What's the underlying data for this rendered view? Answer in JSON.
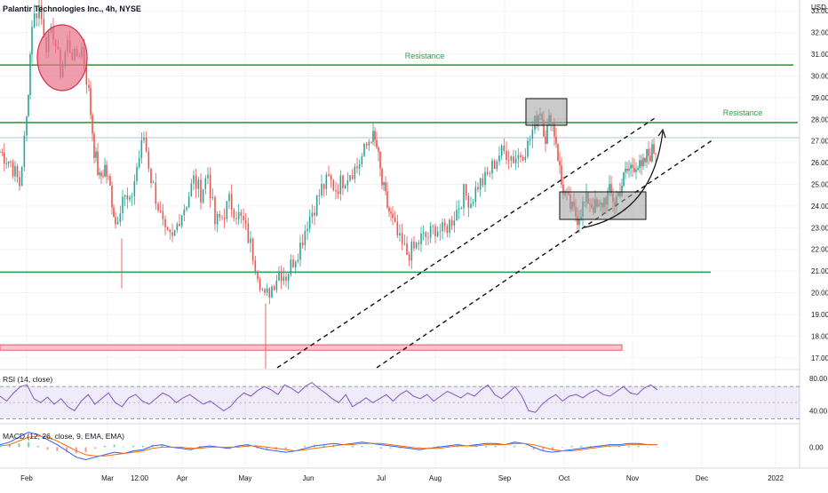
{
  "header": {
    "symbol_line": "Palantir Technologies Inc., 4h, NYSE",
    "currency": "USD"
  },
  "chart_data": {
    "type": "line",
    "title": "Palantir Technologies Inc., 4h, NYSE",
    "main": {
      "ylim": [
        16.5,
        33.5
      ],
      "yticks": [
        17,
        18,
        19,
        20,
        21,
        22,
        23,
        24,
        25,
        26,
        27,
        28,
        29,
        30,
        31,
        32,
        33
      ],
      "ytick_labels": [
        "17.00",
        "18.00",
        "19.00",
        "20.00",
        "21.00",
        "22.00",
        "23.00",
        "24.00",
        "25.00",
        "26.00",
        "27.00",
        "28.00",
        "29.00",
        "30.00",
        "31.00",
        "32.00",
        "33.00"
      ],
      "series": [
        {
          "values": [
            [
              0,
              26.5
            ],
            [
              12,
              26.0
            ],
            [
              22,
              25.0
            ],
            [
              30,
              28.0
            ],
            [
              36,
              32.5
            ],
            [
              44,
              33.2
            ],
            [
              52,
              31.5
            ],
            [
              60,
              32.0
            ],
            [
              68,
              30.2
            ],
            [
              76,
              31.5
            ],
            [
              84,
              30.8
            ],
            [
              92,
              31.3
            ],
            [
              100,
              29.2
            ],
            [
              106,
              26.6
            ],
            [
              112,
              25.2
            ],
            [
              118,
              25.8
            ],
            [
              124,
              24.8
            ],
            [
              130,
              23.2
            ],
            [
              138,
              24.5
            ],
            [
              146,
              24.0
            ],
            [
              154,
              25.8
            ],
            [
              162,
              27.2
            ],
            [
              170,
              25.3
            ],
            [
              178,
              24.0
            ],
            [
              186,
              22.6
            ],
            [
              194,
              22.4
            ],
            [
              202,
              23.5
            ],
            [
              210,
              24.2
            ],
            [
              218,
              25.2
            ],
            [
              226,
              24.6
            ],
            [
              234,
              25.5
            ],
            [
              242,
              23.2
            ],
            [
              250,
              23.5
            ],
            [
              258,
              24.2
            ],
            [
              266,
              23.7
            ],
            [
              274,
              23.2
            ],
            [
              282,
              22.2
            ],
            [
              290,
              21.0
            ],
            [
              298,
              19.7
            ],
            [
              306,
              20.3
            ],
            [
              314,
              21.0
            ],
            [
              322,
              20.8
            ],
            [
              330,
              21.5
            ],
            [
              338,
              22.2
            ],
            [
              346,
              23.3
            ],
            [
              354,
              24.0
            ],
            [
              362,
              24.8
            ],
            [
              370,
              25.2
            ],
            [
              378,
              24.8
            ],
            [
              386,
              25.2
            ],
            [
              394,
              25.6
            ],
            [
              402,
              25.8
            ],
            [
              410,
              26.5
            ],
            [
              418,
              27.3
            ],
            [
              424,
              26.7
            ],
            [
              430,
              25.0
            ],
            [
              436,
              24.0
            ],
            [
              442,
              23.2
            ],
            [
              450,
              22.3
            ],
            [
              458,
              21.8
            ],
            [
              466,
              22.0
            ],
            [
              474,
              22.5
            ],
            [
              482,
              22.6
            ],
            [
              490,
              23.0
            ],
            [
              498,
              22.8
            ],
            [
              506,
              23.2
            ],
            [
              514,
              23.8
            ],
            [
              522,
              24.6
            ],
            [
              530,
              24.2
            ],
            [
              538,
              25.0
            ],
            [
              546,
              25.2
            ],
            [
              554,
              25.8
            ],
            [
              562,
              26.4
            ],
            [
              570,
              26.5
            ],
            [
              578,
              26.2
            ],
            [
              586,
              26.4
            ],
            [
              594,
              26.8
            ],
            [
              602,
              27.8
            ],
            [
              608,
              28.5
            ],
            [
              614,
              27.2
            ],
            [
              620,
              28.2
            ],
            [
              626,
              27.0
            ],
            [
              632,
              25.0
            ],
            [
              638,
              24.3
            ],
            [
              644,
              23.8
            ],
            [
              650,
              23.5
            ],
            [
              656,
              24.0
            ],
            [
              662,
              24.3
            ],
            [
              668,
              24.0
            ],
            [
              674,
              23.8
            ],
            [
              680,
              24.3
            ],
            [
              686,
              24.6
            ],
            [
              692,
              24.2
            ],
            [
              698,
              24.8
            ],
            [
              704,
              25.5
            ],
            [
              710,
              25.8
            ],
            [
              716,
              26.0
            ],
            [
              722,
              25.6
            ],
            [
              728,
              26.3
            ],
            [
              734,
              26.5
            ],
            [
              740,
              26.7
            ]
          ]
        }
      ],
      "annotations": [
        {
          "type": "hline",
          "y": 30.5,
          "label": "Resistance"
        },
        {
          "type": "hline",
          "y": 27.85,
          "label": "Resistance"
        },
        {
          "type": "hline",
          "y": 20.95,
          "label": ""
        },
        {
          "type": "price_line",
          "y": 27.15
        },
        {
          "type": "zone",
          "y0": 17.35,
          "y1": 17.6
        }
      ]
    },
    "rsi": {
      "label": "RSI (14, close)",
      "ylim": [
        25,
        90
      ],
      "yticks": [
        40,
        80
      ],
      "ytick_labels": [
        "40.00",
        "80.00"
      ],
      "upper": 70,
      "lower": 30,
      "middle": 50,
      "values": [
        58,
        52,
        62,
        70,
        72,
        55,
        50,
        57,
        48,
        55,
        45,
        40,
        52,
        60,
        48,
        55,
        62,
        50,
        45,
        56,
        60,
        52,
        48,
        55,
        62,
        58,
        50,
        56,
        60,
        54,
        48,
        52,
        46,
        40,
        45,
        55,
        62,
        58,
        65,
        70,
        66,
        60,
        72,
        68,
        62,
        70,
        75,
        68,
        62,
        55,
        50,
        60,
        45,
        50,
        56,
        50,
        55,
        60,
        52,
        60,
        65,
        58,
        55,
        60,
        52,
        58,
        64,
        60,
        56,
        62,
        58,
        66,
        72,
        60,
        55,
        62,
        70,
        58,
        40,
        38,
        48,
        55,
        60,
        52,
        58,
        60,
        56,
        62,
        66,
        60,
        58,
        64,
        70,
        62,
        60,
        68,
        72,
        66
      ]
    },
    "macd": {
      "label": "MACD (12, 26, close, 9, EMA, EMA)",
      "ylim": [
        -1.6,
        1.8
      ],
      "yticks": [
        0
      ],
      "ytick_labels": [
        "0.00"
      ],
      "macd": [
        0.2,
        0.4,
        0.8,
        1.2,
        1.0,
        0.6,
        0.2,
        -0.3,
        -0.8,
        -1.0,
        -0.8,
        -0.6,
        -0.4,
        -0.5,
        -0.3,
        -0.2,
        0.1,
        0.2,
        0.0,
        -0.1,
        -0.2,
        0.0,
        0.1,
        0.0,
        -0.1,
        0.1,
        0.2,
        0.0,
        -0.2,
        -0.3,
        -0.4,
        -0.3,
        -0.1,
        0.1,
        0.2,
        0.3,
        0.2,
        0.3,
        0.4,
        0.3,
        0.2,
        0.1,
        0.0,
        -0.1,
        -0.2,
        -0.1,
        0.0,
        0.1,
        0.2,
        0.1,
        0.2,
        0.3,
        0.3,
        0.2,
        0.4,
        0.3,
        0.0,
        -0.3,
        -0.4,
        -0.3,
        -0.2,
        -0.1,
        0.0,
        0.1,
        0.2,
        0.2,
        0.3,
        0.3,
        0.2,
        0.2
      ],
      "signal": [
        0.1,
        0.2,
        0.5,
        0.8,
        0.9,
        0.8,
        0.5,
        0.1,
        -0.3,
        -0.6,
        -0.7,
        -0.7,
        -0.6,
        -0.5,
        -0.4,
        -0.3,
        -0.1,
        0.0,
        0.0,
        0.0,
        -0.1,
        -0.1,
        0.0,
        0.0,
        0.0,
        0.0,
        0.1,
        0.1,
        0.0,
        -0.1,
        -0.2,
        -0.3,
        -0.2,
        -0.1,
        0.0,
        0.1,
        0.2,
        0.2,
        0.3,
        0.3,
        0.3,
        0.2,
        0.1,
        0.0,
        -0.1,
        -0.1,
        -0.1,
        0.0,
        0.1,
        0.1,
        0.1,
        0.2,
        0.2,
        0.2,
        0.3,
        0.3,
        0.2,
        0.0,
        -0.2,
        -0.3,
        -0.3,
        -0.2,
        -0.1,
        0.0,
        0.1,
        0.1,
        0.2,
        0.2,
        0.2,
        0.2
      ]
    },
    "x_tick_labels": [
      "Feb",
      "Mar",
      "12:00",
      "Apr",
      "May",
      "Jun",
      "Jul",
      "Aug",
      "Sep",
      "Oct",
      "Nov",
      "Dec",
      "2022"
    ]
  }
}
